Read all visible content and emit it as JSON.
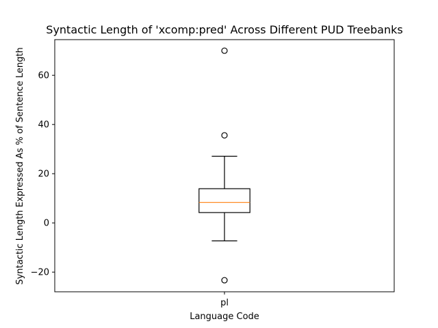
{
  "chart_data": {
    "type": "box",
    "title": "Syntactic Length of 'xcomp:pred' Across Different PUD Treebanks",
    "xlabel": "Language Code",
    "ylabel": "Syntactic Length Expressed As % of Sentence Length",
    "categories": [
      "pl"
    ],
    "ylim": [
      -28,
      74.5
    ],
    "yticks": [
      -20,
      0,
      20,
      40,
      60
    ],
    "ytick_labels": [
      "−20",
      "0",
      "20",
      "40",
      "60"
    ],
    "boxes": [
      {
        "category": "pl",
        "whisker_low": -7.3,
        "q1": 4.2,
        "median": 8.3,
        "q3": 13.9,
        "whisker_high": 27.1,
        "outliers": [
          -23.3,
          35.6,
          70.0
        ]
      }
    ],
    "colors": {
      "box": "#000000",
      "median": "#ff7f0e",
      "axes": "#000000"
    }
  }
}
